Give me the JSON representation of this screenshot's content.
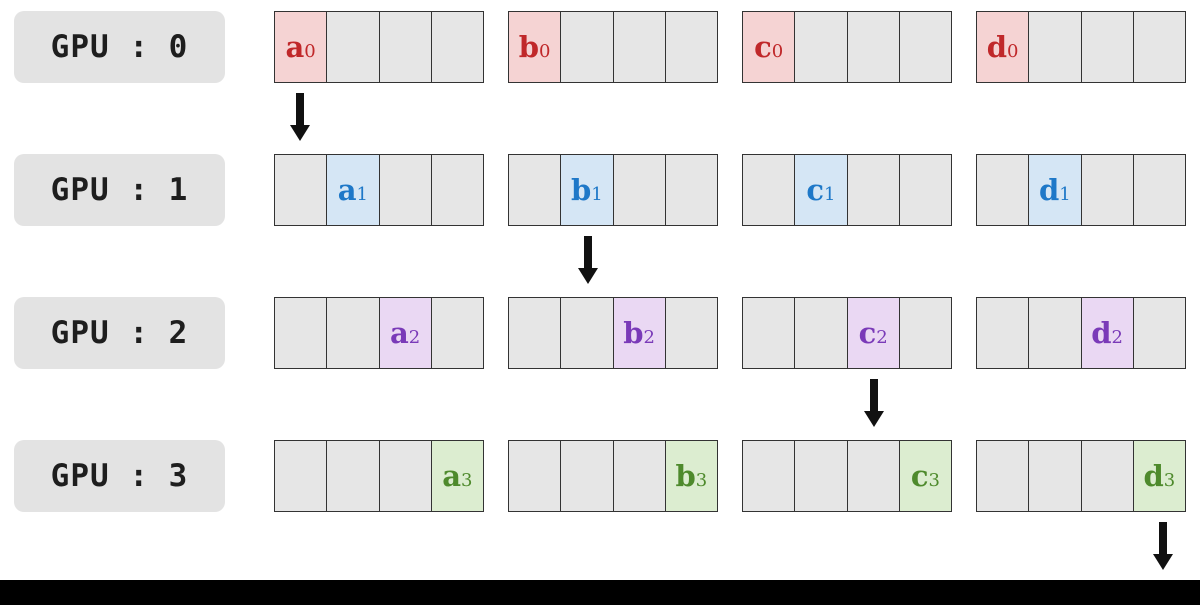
{
  "rows": [
    {
      "label": "GPU : 0",
      "color": "#c0282a",
      "bg": "#f5d3d3",
      "pos": 0,
      "chunks": [
        {
          "letter": "a",
          "idx": "0"
        },
        {
          "letter": "b",
          "idx": "0"
        },
        {
          "letter": "c",
          "idx": "0"
        },
        {
          "letter": "d",
          "idx": "0"
        }
      ]
    },
    {
      "label": "GPU : 1",
      "color": "#1e78c8",
      "bg": "#d5e6f5",
      "pos": 1,
      "chunks": [
        {
          "letter": "a",
          "idx": "1"
        },
        {
          "letter": "b",
          "idx": "1"
        },
        {
          "letter": "c",
          "idx": "1"
        },
        {
          "letter": "d",
          "idx": "1"
        }
      ]
    },
    {
      "label": "GPU : 2",
      "color": "#7a3ab8",
      "bg": "#ead8f3",
      "pos": 2,
      "chunks": [
        {
          "letter": "a",
          "idx": "2"
        },
        {
          "letter": "b",
          "idx": "2"
        },
        {
          "letter": "c",
          "idx": "2"
        },
        {
          "letter": "d",
          "idx": "2"
        }
      ]
    },
    {
      "label": "GPU : 3",
      "color": "#4e8a2c",
      "bg": "#dcedd0",
      "pos": 3,
      "chunks": [
        {
          "letter": "a",
          "idx": "3"
        },
        {
          "letter": "b",
          "idx": "3"
        },
        {
          "letter": "c",
          "idx": "3"
        },
        {
          "letter": "d",
          "idx": "3"
        }
      ]
    }
  ]
}
